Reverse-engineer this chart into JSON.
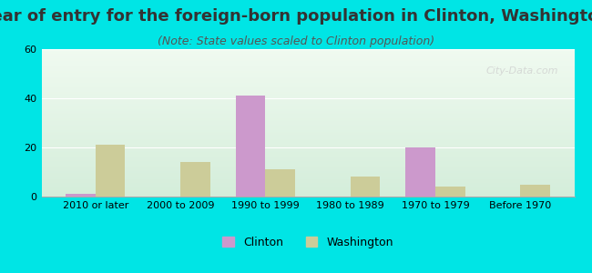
{
  "title": "Year of entry for the foreign-born population in Clinton, Washington",
  "subtitle": "(Note: State values scaled to Clinton population)",
  "categories": [
    "2010 or later",
    "2000 to 2009",
    "1990 to 1999",
    "1980 to 1989",
    "1970 to 1979",
    "Before 1970"
  ],
  "clinton_values": [
    1,
    0,
    41,
    0,
    20,
    0
  ],
  "washington_values": [
    21,
    14,
    11,
    8,
    4,
    5
  ],
  "clinton_color": "#cc99cc",
  "washington_color": "#cccc99",
  "background_color": "#00e5e5",
  "plot_bg_start": "#e8f5e8",
  "plot_bg_end": "#f5fff5",
  "ylim": [
    0,
    60
  ],
  "yticks": [
    0,
    20,
    40,
    60
  ],
  "bar_width": 0.35,
  "title_fontsize": 13,
  "subtitle_fontsize": 9,
  "tick_fontsize": 8,
  "legend_fontsize": 9,
  "watermark": "City-Data.com"
}
